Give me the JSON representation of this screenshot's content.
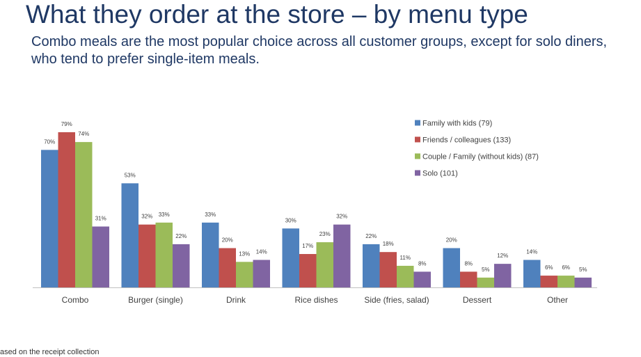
{
  "page": {
    "title": "What they order at the store – by menu type",
    "subtitle": "Combo meals are the most popular choice across all customer groups, except for solo diners, who tend to prefer single-item meals.",
    "footnote": "ased on the receipt collection"
  },
  "chart_data": {
    "type": "bar",
    "categories": [
      "Combo",
      "Burger (single)",
      "Drink",
      "Rice dishes",
      "Side (fries, salad)",
      "Dessert",
      "Other"
    ],
    "series": [
      {
        "name": "Family with kids (79)",
        "color": "#4f81bd",
        "values": [
          70,
          53,
          33,
          30,
          22,
          20,
          14
        ]
      },
      {
        "name": "Friends / colleagues (133)",
        "color": "#c0504d",
        "values": [
          79,
          32,
          20,
          17,
          18,
          8,
          6
        ]
      },
      {
        "name": "Couple / Family (without kids) (87)",
        "color": "#9bbb59",
        "values": [
          74,
          33,
          13,
          23,
          11,
          5,
          6
        ]
      },
      {
        "name": "Solo (101)",
        "color": "#8064a2",
        "values": [
          31,
          22,
          14,
          32,
          8,
          12,
          5
        ]
      }
    ],
    "value_suffix": "%",
    "ylim": [
      0,
      80
    ],
    "grid": false,
    "legend_position": "top-right"
  }
}
